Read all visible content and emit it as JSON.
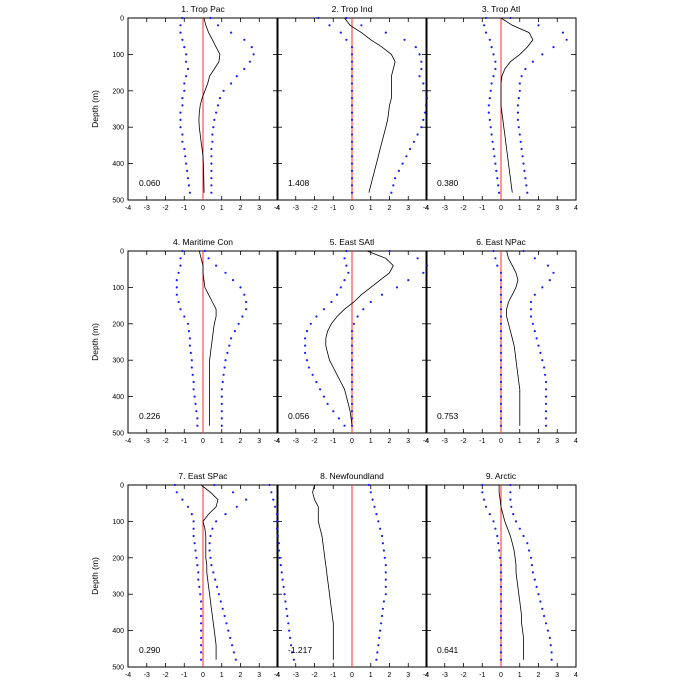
{
  "chart_data": {
    "type": "line",
    "ylabel": "Depth (m)",
    "xlim": [
      -4,
      4
    ],
    "ylim": [
      0,
      500
    ],
    "x_ticks": [
      "-4",
      "-3",
      "-2",
      "-1",
      "0",
      "1",
      "2",
      "3",
      "4"
    ],
    "y_ticks": [
      "0",
      "100",
      "200",
      "300",
      "400",
      "500"
    ],
    "depth": [
      0,
      20,
      40,
      60,
      80,
      100,
      120,
      140,
      160,
      180,
      200,
      220,
      240,
      260,
      280,
      300,
      320,
      340,
      360,
      380,
      400,
      420,
      440,
      460,
      480
    ],
    "colors": {
      "mean": "#000000",
      "bounds": "#1a1aff",
      "zero_line": "#ff2a2a"
    },
    "panels": [
      {
        "title": "1. Trop Pac",
        "value_label": "0.060",
        "mean": [
          0.05,
          0.15,
          0.3,
          0.5,
          0.7,
          0.9,
          0.85,
          0.6,
          0.35,
          0.25,
          0.1,
          -0.05,
          -0.15,
          -0.2,
          -0.22,
          -0.2,
          -0.15,
          -0.1,
          -0.05,
          0.0,
          0.02,
          0.03,
          0.04,
          0.05,
          0.06
        ],
        "upper": [
          0.4,
          0.8,
          1.5,
          2.2,
          2.6,
          2.7,
          2.5,
          2.2,
          1.8,
          1.5,
          1.1,
          0.9,
          0.8,
          0.7,
          0.6,
          0.55,
          0.5,
          0.5,
          0.45,
          0.45,
          0.45,
          0.45,
          0.45,
          0.45,
          0.45
        ],
        "lower": [
          -1.1,
          -1.2,
          -1.2,
          -1.1,
          -1.0,
          -0.9,
          -0.9,
          -0.8,
          -0.9,
          -1.0,
          -1.0,
          -1.1,
          -1.1,
          -1.2,
          -1.2,
          -1.2,
          -1.1,
          -1.1,
          -1.0,
          -0.95,
          -0.9,
          -0.85,
          -0.8,
          -0.75,
          -0.7
        ]
      },
      {
        "title": "2. Trop Ind",
        "value_label": "1.408",
        "mean": [
          -0.4,
          -0.1,
          0.5,
          1.0,
          1.6,
          2.1,
          2.3,
          2.2,
          2.1,
          2.1,
          2.1,
          2.1,
          2.0,
          1.95,
          1.9,
          1.8,
          1.7,
          1.6,
          1.5,
          1.4,
          1.3,
          1.2,
          1.1,
          1.0,
          0.9
        ],
        "upper": [
          -0.3,
          0.5,
          1.8,
          2.8,
          3.4,
          3.6,
          3.7,
          3.7,
          3.6,
          3.8,
          4.0,
          4.0,
          3.95,
          3.9,
          3.8,
          3.7,
          3.5,
          3.3,
          3.1,
          2.9,
          2.7,
          2.5,
          2.3,
          2.2,
          2.1
        ],
        "lower": [
          -1.8,
          -1.2,
          -0.6,
          -0.3,
          0.0,
          0.0,
          0.0,
          0.0,
          0.0,
          0.0,
          0.0,
          0.0,
          0.0,
          0.0,
          0.0,
          0.0,
          0.0,
          0.0,
          0.0,
          0.0,
          0.0,
          0.0,
          0.0,
          0.0,
          0.0
        ]
      },
      {
        "title": "3. Trop Atl",
        "value_label": "0.380",
        "mean": [
          0.0,
          0.6,
          1.5,
          1.7,
          1.4,
          1.0,
          0.5,
          0.2,
          0.05,
          0.0,
          0.0,
          0.0,
          0.0,
          0.05,
          0.1,
          0.15,
          0.2,
          0.25,
          0.3,
          0.35,
          0.4,
          0.45,
          0.5,
          0.55,
          0.6
        ],
        "upper": [
          0.5,
          2.0,
          3.3,
          3.5,
          2.8,
          2.2,
          1.7,
          1.3,
          1.1,
          1.0,
          1.0,
          0.95,
          0.9,
          0.9,
          0.9,
          0.95,
          1.0,
          1.05,
          1.1,
          1.15,
          1.2,
          1.25,
          1.3,
          1.35,
          1.4
        ],
        "lower": [
          -0.8,
          -0.9,
          -0.8,
          -0.6,
          -0.5,
          -0.4,
          -0.3,
          -0.3,
          -0.4,
          -0.5,
          -0.55,
          -0.6,
          -0.65,
          -0.65,
          -0.6,
          -0.55,
          -0.5,
          -0.45,
          -0.4,
          -0.35,
          -0.3,
          -0.25,
          -0.2,
          -0.15,
          -0.1
        ]
      },
      {
        "title": "4. Maritime Con",
        "value_label": "0.226",
        "mean": [
          -0.2,
          -0.1,
          0.0,
          0.0,
          0.05,
          0.1,
          0.3,
          0.5,
          0.7,
          0.7,
          0.6,
          0.55,
          0.5,
          0.45,
          0.4,
          0.35,
          0.35,
          0.35,
          0.35,
          0.35,
          0.35,
          0.35,
          0.35,
          0.35,
          0.35
        ],
        "upper": [
          0.1,
          0.3,
          0.7,
          1.2,
          1.6,
          2.0,
          2.2,
          2.3,
          2.3,
          2.1,
          1.9,
          1.7,
          1.5,
          1.4,
          1.3,
          1.2,
          1.15,
          1.1,
          1.05,
          1.0,
          1.0,
          1.0,
          1.0,
          1.0,
          1.0
        ],
        "lower": [
          -1.1,
          -1.2,
          -1.2,
          -1.3,
          -1.4,
          -1.4,
          -1.4,
          -1.3,
          -1.2,
          -1.0,
          -0.8,
          -0.75,
          -0.7,
          -0.7,
          -0.65,
          -0.6,
          -0.6,
          -0.55,
          -0.5,
          -0.5,
          -0.45,
          -0.4,
          -0.35,
          -0.3,
          -0.3
        ]
      },
      {
        "title": "5. East SAtl",
        "value_label": "0.056",
        "mean": [
          0.8,
          1.8,
          2.2,
          2.0,
          1.5,
          1.0,
          0.5,
          0.1,
          -0.4,
          -0.8,
          -1.1,
          -1.3,
          -1.4,
          -1.4,
          -1.3,
          -1.2,
          -1.0,
          -0.8,
          -0.6,
          -0.4,
          -0.3,
          -0.2,
          -0.1,
          -0.05,
          0.0
        ],
        "upper": [
          2.0,
          3.5,
          4.0,
          3.8,
          3.0,
          2.4,
          1.6,
          1.0,
          0.6,
          0.3,
          0.1,
          0.0,
          0.0,
          0.0,
          0.0,
          0.0,
          0.0,
          0.0,
          0.0,
          0.0,
          0.0,
          0.0,
          0.0,
          0.0,
          0.0
        ],
        "lower": [
          -0.3,
          -0.4,
          -0.3,
          -0.2,
          -0.4,
          -0.6,
          -0.8,
          -1.1,
          -1.5,
          -1.9,
          -2.2,
          -2.4,
          -2.5,
          -2.5,
          -2.5,
          -2.4,
          -2.3,
          -2.1,
          -1.9,
          -1.7,
          -1.5,
          -1.3,
          -1.0,
          -0.7,
          -0.4
        ]
      },
      {
        "title": "6. East NPac",
        "value_label": "0.753",
        "mean": [
          0.3,
          0.4,
          0.6,
          0.8,
          0.9,
          0.8,
          0.6,
          0.4,
          0.3,
          0.3,
          0.4,
          0.5,
          0.6,
          0.7,
          0.75,
          0.8,
          0.85,
          0.9,
          0.95,
          1.0,
          1.0,
          1.0,
          1.0,
          1.0,
          1.0
        ],
        "upper": [
          1.2,
          1.8,
          2.5,
          2.8,
          2.6,
          2.2,
          1.8,
          1.6,
          1.6,
          1.6,
          1.7,
          1.8,
          1.9,
          2.0,
          2.1,
          2.2,
          2.3,
          2.35,
          2.4,
          2.4,
          2.4,
          2.4,
          2.4,
          2.4,
          2.4
        ],
        "lower": [
          -0.4,
          -0.3,
          -0.2,
          0.0,
          0.0,
          0.0,
          0.0,
          0.0,
          0.0,
          0.0,
          0.0,
          0.0,
          0.0,
          0.0,
          0.0,
          0.0,
          0.0,
          0.0,
          0.0,
          0.0,
          0.0,
          0.0,
          0.0,
          0.0,
          0.0
        ]
      },
      {
        "title": "7. East SPac",
        "value_label": "0.290",
        "mean": [
          -0.1,
          0.4,
          0.8,
          0.7,
          0.3,
          0.0,
          0.1,
          0.15,
          0.15,
          0.15,
          0.15,
          0.2,
          0.2,
          0.25,
          0.3,
          0.35,
          0.4,
          0.45,
          0.5,
          0.55,
          0.6,
          0.65,
          0.7,
          0.7,
          0.7
        ],
        "upper": [
          0.6,
          1.6,
          2.3,
          1.8,
          1.2,
          0.7,
          0.5,
          0.4,
          0.35,
          0.35,
          0.4,
          0.45,
          0.55,
          0.65,
          0.75,
          0.85,
          0.95,
          1.05,
          1.15,
          1.25,
          1.35,
          1.45,
          1.55,
          1.65,
          1.75
        ],
        "lower": [
          -1.5,
          -1.4,
          -1.1,
          -0.8,
          -0.6,
          -0.5,
          -0.5,
          -0.5,
          -0.45,
          -0.4,
          -0.35,
          -0.3,
          -0.25,
          -0.25,
          -0.2,
          -0.15,
          -0.1,
          -0.1,
          -0.1,
          -0.1,
          -0.1,
          -0.1,
          -0.1,
          -0.1,
          -0.1
        ]
      },
      {
        "title": "8. Newfoundland",
        "value_label": "-1.217",
        "mean": [
          -2.0,
          -2.1,
          -2.0,
          -1.8,
          -1.8,
          -1.8,
          -1.7,
          -1.6,
          -1.55,
          -1.5,
          -1.45,
          -1.4,
          -1.35,
          -1.3,
          -1.25,
          -1.2,
          -1.15,
          -1.1,
          -1.05,
          -1.0,
          -1.0,
          -1.0,
          -1.0,
          -1.0,
          -1.0
        ],
        "upper": [
          0.9,
          1.0,
          1.1,
          1.2,
          1.3,
          1.4,
          1.5,
          1.6,
          1.65,
          1.7,
          1.75,
          1.8,
          1.8,
          1.8,
          1.8,
          1.8,
          1.7,
          1.65,
          1.6,
          1.55,
          1.5,
          1.45,
          1.4,
          1.35,
          1.3
        ],
        "lower": [
          -4.4,
          -4.3,
          -4.2,
          -4.1,
          -4.0,
          -4.0,
          -4.0,
          -3.95,
          -3.9,
          -3.9,
          -3.85,
          -3.8,
          -3.75,
          -3.7,
          -3.65,
          -3.6,
          -3.55,
          -3.5,
          -3.45,
          -3.4,
          -3.35,
          -3.3,
          -3.25,
          -3.2,
          -3.1
        ]
      },
      {
        "title": "9. Arctic",
        "value_label": "0.641",
        "mean": [
          -0.1,
          -0.1,
          -0.05,
          0.0,
          0.1,
          0.2,
          0.35,
          0.5,
          0.6,
          0.7,
          0.75,
          0.8,
          0.8,
          0.85,
          0.9,
          0.95,
          1.0,
          1.05,
          1.1,
          1.1,
          1.15,
          1.2,
          1.2,
          1.2,
          1.2
        ],
        "upper": [
          0.5,
          0.5,
          0.5,
          0.55,
          0.65,
          0.8,
          1.0,
          1.2,
          1.4,
          1.5,
          1.6,
          1.65,
          1.7,
          1.8,
          1.9,
          2.0,
          2.1,
          2.2,
          2.3,
          2.4,
          2.5,
          2.6,
          2.65,
          2.7,
          2.7
        ],
        "lower": [
          -1.0,
          -1.0,
          -0.9,
          -0.8,
          -0.6,
          -0.4,
          -0.3,
          -0.2,
          -0.15,
          -0.1,
          -0.05,
          0.0,
          0.0,
          0.0,
          0.0,
          0.0,
          0.0,
          0.0,
          0.0,
          0.0,
          0.0,
          0.0,
          0.0,
          0.0,
          0.0
        ]
      }
    ]
  }
}
